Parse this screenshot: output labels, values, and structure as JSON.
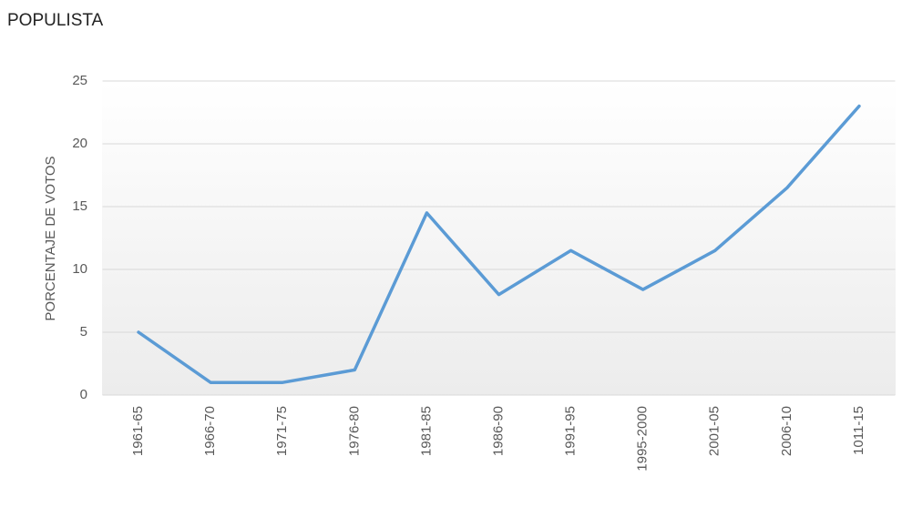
{
  "chart_data": {
    "type": "line",
    "title": "POPULISTA",
    "y_label": "PORCENTAJE DE VOTOS",
    "categories": [
      "1961-65",
      "1966-70",
      "1971-75",
      "1976-80",
      "1981-85",
      "1986-90",
      "1991-95",
      "1995-2000",
      "2001-05",
      "2006-10",
      "1011-15"
    ],
    "values": [
      5,
      1,
      1,
      2,
      14.5,
      8,
      11.5,
      8.4,
      11.5,
      16.5,
      23
    ],
    "color": "#5b9bd5",
    "ylim": [
      0,
      25
    ],
    "yticks": [
      0,
      5,
      10,
      15,
      20,
      25
    ],
    "grid": true
  }
}
